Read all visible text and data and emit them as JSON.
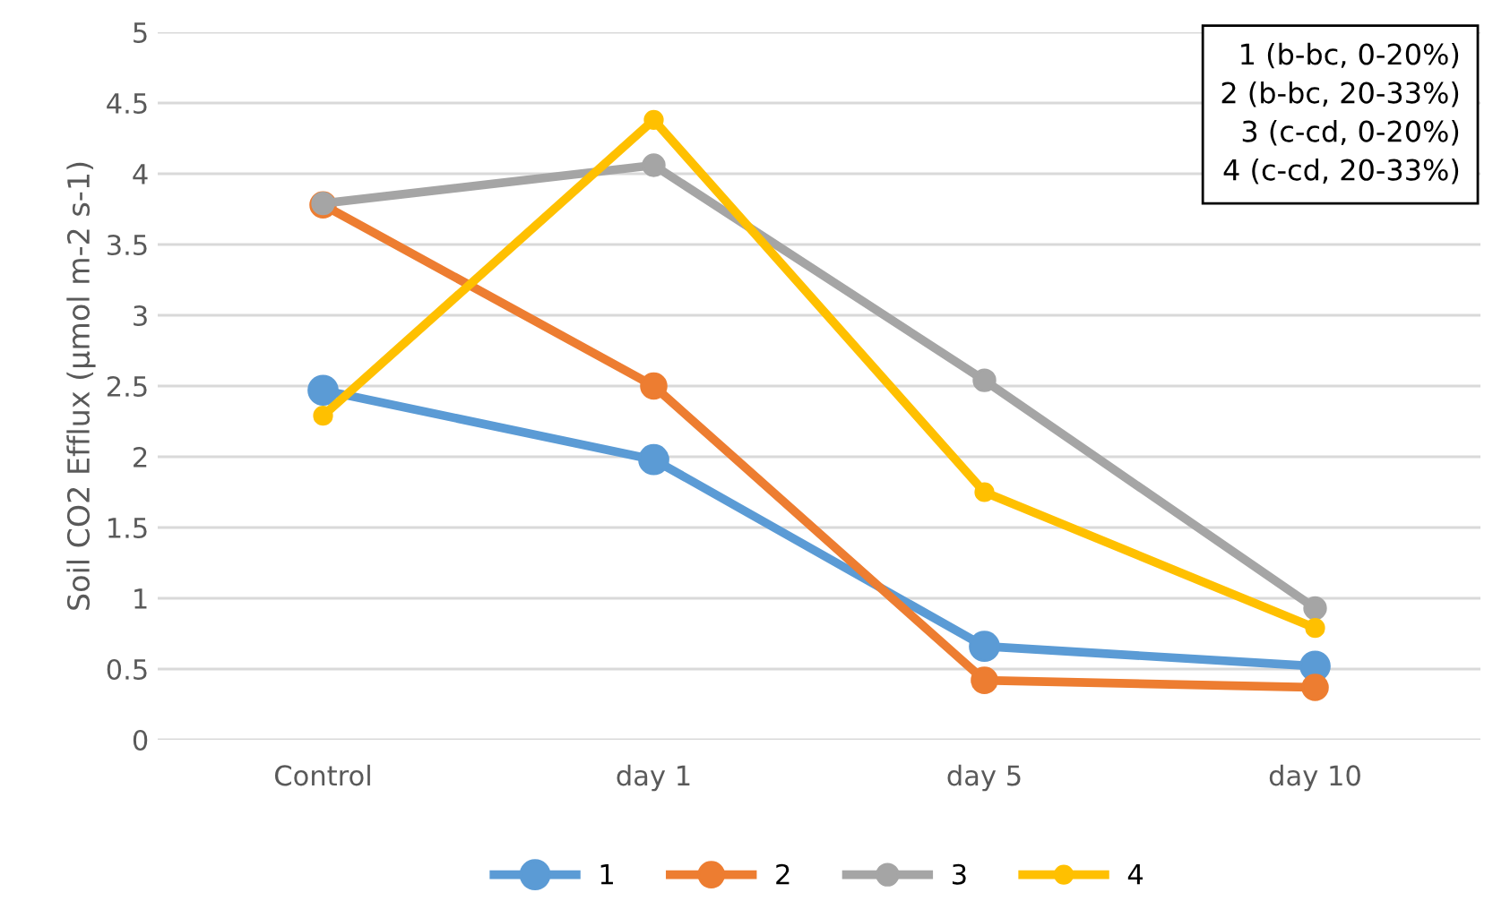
{
  "chart_data": {
    "type": "line",
    "ylabel": "Soil CO2 Efflux (µmol m-2 s-1)",
    "categories": [
      "Control",
      "day 1",
      "day 5",
      "day 10"
    ],
    "series": [
      {
        "name": "1",
        "color": "#5b9bd5",
        "values": [
          2.47,
          1.98,
          0.66,
          0.52
        ]
      },
      {
        "name": "2",
        "color": "#ed7d31",
        "values": [
          3.78,
          2.5,
          0.42,
          0.37
        ]
      },
      {
        "name": "3",
        "color": "#a5a5a5",
        "values": [
          3.79,
          4.06,
          2.54,
          0.93
        ]
      },
      {
        "name": "4",
        "color": "#ffc000",
        "values": [
          2.29,
          4.38,
          1.75,
          0.79
        ]
      }
    ],
    "ylim": [
      0,
      5
    ],
    "yticks": [
      0,
      0.5,
      1,
      1.5,
      2,
      2.5,
      3,
      3.5,
      4,
      4.5,
      5
    ],
    "grid": "y",
    "legend": "bottom",
    "marker": "circle",
    "line_style": "solid",
    "annotations": [
      "1 (b-bc, 0-20%)\n2 (b-bc, 20-33%)\n3 (c-cd, 0-20%)\n4 (c-cd, 20-33%)"
    ]
  }
}
